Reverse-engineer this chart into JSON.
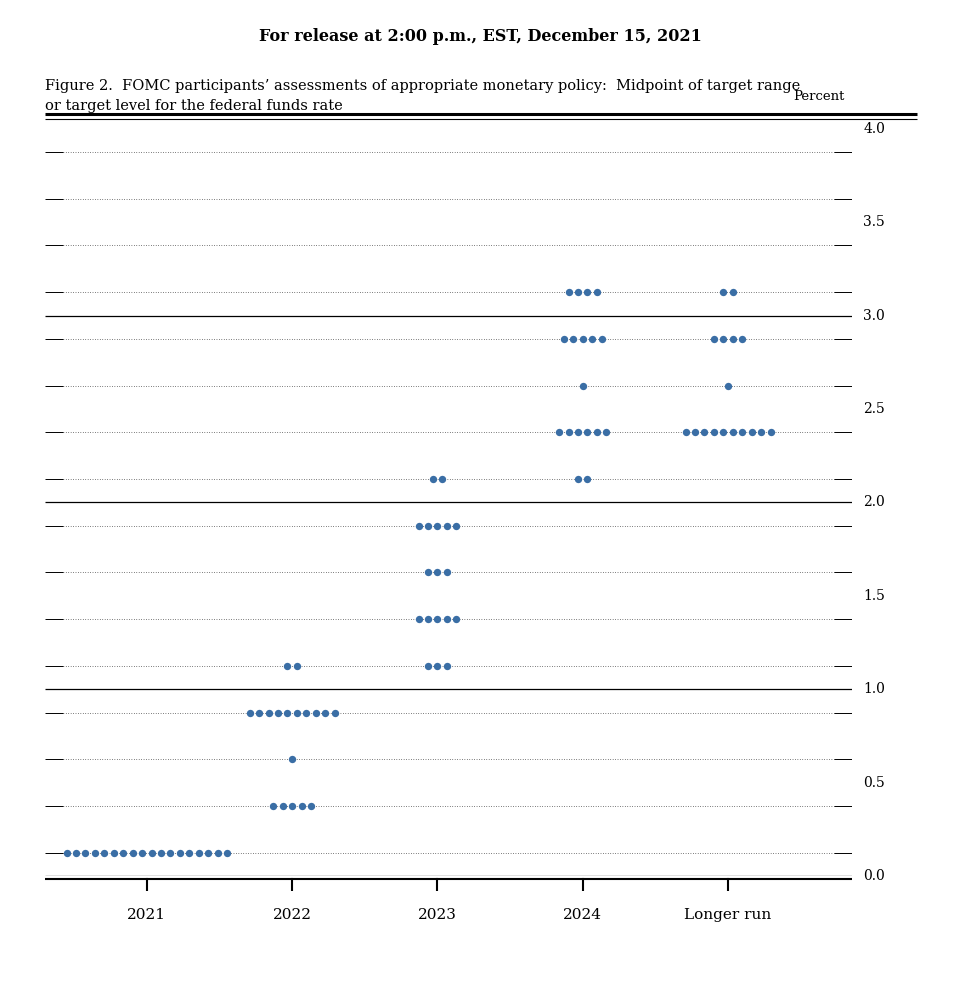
{
  "release_text": "For release at 2:00 p.m., EST, December 15, 2021",
  "figure_title_line1": "Figure 2.  FOMC participants’ assessments of appropriate monetary policy:  Midpoint of target range",
  "figure_title_line2": "or target level for the federal funds rate",
  "ylabel": "Percent",
  "xlabel_categories": [
    "2021",
    "2022",
    "2023",
    "2024",
    "Longer run"
  ],
  "dot_color": "#3a6ea5",
  "dot_size": 28,
  "ylim": [
    0.0,
    4.0
  ],
  "yticks": [
    0.0,
    0.5,
    1.0,
    1.5,
    2.0,
    2.5,
    3.0,
    3.5,
    4.0
  ],
  "solid_line_levels": [
    0.0,
    1.0,
    2.0,
    3.0
  ],
  "dotted_line_levels": [
    0.125,
    0.375,
    0.625,
    0.875,
    1.125,
    1.375,
    1.625,
    1.875,
    2.125,
    2.375,
    2.625,
    2.875,
    3.125,
    3.375,
    3.625,
    3.875
  ],
  "dots": {
    "2021": {
      "0.125": 18
    },
    "2022": {
      "0.375": 5,
      "0.625": 1,
      "0.875": 10,
      "1.125": 2
    },
    "2023": {
      "1.125": 3,
      "1.375": 5,
      "1.625": 3,
      "1.875": 5,
      "2.125": 2
    },
    "2024": {
      "2.125": 2,
      "2.375": 6,
      "2.625": 1,
      "2.875": 5,
      "3.125": 4
    },
    "Longer run": {
      "2.375": 10,
      "2.625": 1,
      "2.875": 4,
      "3.125": 2
    }
  },
  "x_map": {
    "2021": 1,
    "2022": 2,
    "2023": 3,
    "2024": 4,
    "Longer run": 5
  }
}
